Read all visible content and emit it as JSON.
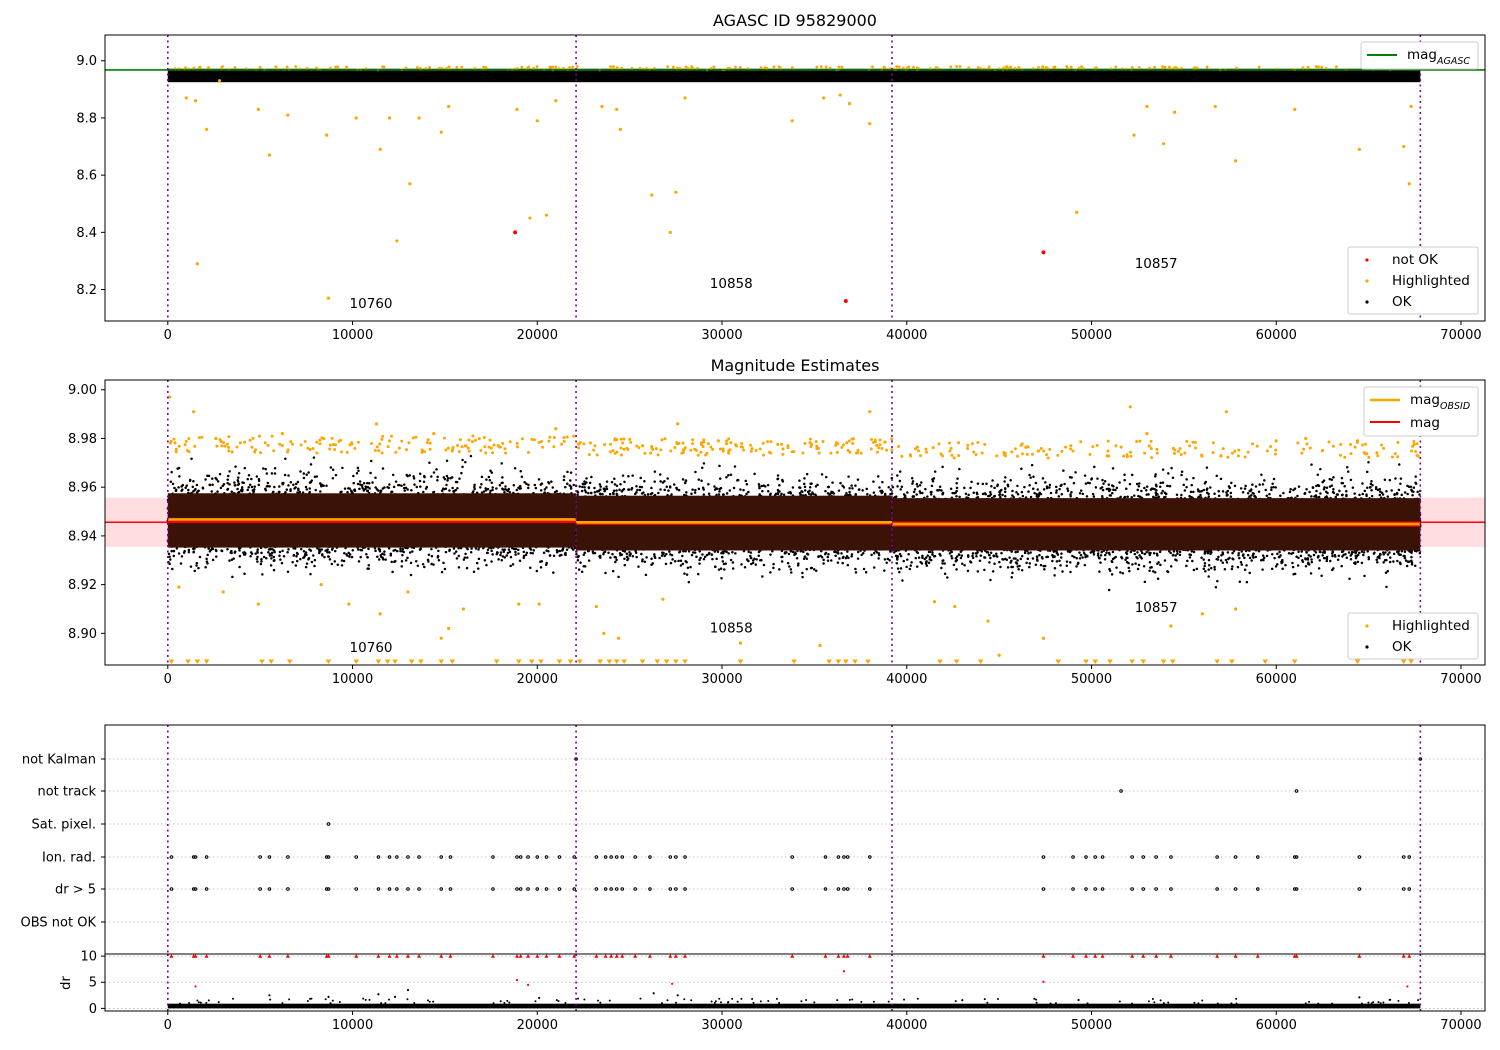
{
  "colors": {
    "ok": "#000000",
    "highlighted": "#ffa500",
    "not_ok": "#ff0000",
    "mag_agasc_line": "#008000",
    "mag_obsid_line": "#ffa500",
    "mag_line": "#ff0000",
    "obs_boundary": "#7f00a0",
    "band_fill": "#ffdde0",
    "band_dark": "#3a1206"
  },
  "chart_data": [
    {
      "panel": "agasc",
      "type": "scatter",
      "title": "AGASC ID 95829000",
      "xlabel": "",
      "ylabel": "",
      "xlim": [
        -3400,
        71300
      ],
      "ylim": [
        8.09,
        9.09
      ],
      "x_ticks": [
        0,
        10000,
        20000,
        30000,
        40000,
        50000,
        60000,
        70000
      ],
      "x_tick_labels": [
        "0",
        "10000",
        "20000",
        "30000",
        "40000",
        "50000",
        "60000",
        "70000"
      ],
      "y_ticks": [
        8.2,
        8.4,
        8.6,
        8.8,
        9.0
      ],
      "y_tick_labels": [
        "8.2",
        "8.4",
        "8.6",
        "8.8",
        "9.0"
      ],
      "ok_band": {
        "x_range": [
          0,
          67800
        ],
        "y_range": [
          8.925,
          8.972
        ]
      },
      "reference_line": {
        "name": "mag",
        "sub": "AGASC",
        "y": 8.968
      },
      "highlighted_points": [
        {
          "x": 1000,
          "y": 8.87
        },
        {
          "x": 1500,
          "y": 8.86
        },
        {
          "x": 1600,
          "y": 8.29
        },
        {
          "x": 2100,
          "y": 8.76
        },
        {
          "x": 2800,
          "y": 8.93
        },
        {
          "x": 4900,
          "y": 8.83
        },
        {
          "x": 5500,
          "y": 8.67
        },
        {
          "x": 6500,
          "y": 8.81
        },
        {
          "x": 8600,
          "y": 8.74
        },
        {
          "x": 8700,
          "y": 8.17
        },
        {
          "x": 10200,
          "y": 8.8
        },
        {
          "x": 11500,
          "y": 8.69
        },
        {
          "x": 12000,
          "y": 8.8
        },
        {
          "x": 12400,
          "y": 8.37
        },
        {
          "x": 13100,
          "y": 8.57
        },
        {
          "x": 13600,
          "y": 8.8
        },
        {
          "x": 14800,
          "y": 8.75
        },
        {
          "x": 15200,
          "y": 8.84
        },
        {
          "x": 18900,
          "y": 8.83
        },
        {
          "x": 19600,
          "y": 8.45
        },
        {
          "x": 20000,
          "y": 8.79
        },
        {
          "x": 20500,
          "y": 8.46
        },
        {
          "x": 21000,
          "y": 8.86
        },
        {
          "x": 23500,
          "y": 8.84
        },
        {
          "x": 24300,
          "y": 8.83
        },
        {
          "x": 24500,
          "y": 8.76
        },
        {
          "x": 26200,
          "y": 8.53
        },
        {
          "x": 27200,
          "y": 8.4
        },
        {
          "x": 27500,
          "y": 8.54
        },
        {
          "x": 28000,
          "y": 8.87
        },
        {
          "x": 33800,
          "y": 8.79
        },
        {
          "x": 35500,
          "y": 8.87
        },
        {
          "x": 36400,
          "y": 8.88
        },
        {
          "x": 36900,
          "y": 8.85
        },
        {
          "x": 38000,
          "y": 8.78
        },
        {
          "x": 49200,
          "y": 8.47
        },
        {
          "x": 52300,
          "y": 8.74
        },
        {
          "x": 53000,
          "y": 8.84
        },
        {
          "x": 53900,
          "y": 8.71
        },
        {
          "x": 54500,
          "y": 8.82
        },
        {
          "x": 56700,
          "y": 8.84
        },
        {
          "x": 57800,
          "y": 8.65
        },
        {
          "x": 61000,
          "y": 8.83
        },
        {
          "x": 64500,
          "y": 8.69
        },
        {
          "x": 66900,
          "y": 8.7
        },
        {
          "x": 67200,
          "y": 8.57
        },
        {
          "x": 67300,
          "y": 8.84
        }
      ],
      "not_ok_points": [
        {
          "x": 18800,
          "y": 8.4
        },
        {
          "x": 36700,
          "y": 8.16
        },
        {
          "x": 47400,
          "y": 8.33
        }
      ],
      "obs_boundaries": [
        0,
        22100,
        39200,
        67800
      ],
      "obsid_labels": [
        {
          "text": "10760",
          "x": 11000,
          "y": 8.135
        },
        {
          "text": "10858",
          "x": 30500,
          "y": 8.205
        },
        {
          "text": "10857",
          "x": 53500,
          "y": 8.275
        }
      ],
      "legend_upper": {
        "placement": "top-right",
        "entries": [
          {
            "label": "mag",
            "sub": "AGASC",
            "kind": "line",
            "color_key": "mag_agasc_line"
          }
        ]
      },
      "legend_lower": {
        "placement": "bottom-right",
        "entries": [
          {
            "label": "not OK",
            "kind": "marker",
            "color_key": "not_ok"
          },
          {
            "label": "Highlighted",
            "kind": "marker",
            "color_key": "highlighted"
          },
          {
            "label": "OK",
            "kind": "marker",
            "color_key": "ok"
          }
        ]
      }
    },
    {
      "panel": "estimates",
      "type": "scatter",
      "title": "Magnitude Estimates",
      "xlabel": "",
      "ylabel": "",
      "xlim": [
        -3400,
        71300
      ],
      "ylim": [
        8.887,
        9.004
      ],
      "x_ticks": [
        0,
        10000,
        20000,
        30000,
        40000,
        50000,
        60000,
        70000
      ],
      "x_tick_labels": [
        "0",
        "10000",
        "20000",
        "30000",
        "40000",
        "50000",
        "60000",
        "70000"
      ],
      "y_ticks": [
        8.9,
        8.92,
        8.94,
        8.96,
        8.98,
        9.0
      ],
      "y_tick_labels": [
        "8.90",
        "8.92",
        "8.94",
        "8.96",
        "8.98",
        "9.00"
      ],
      "mag_line": {
        "name": "mag",
        "y": 8.9456,
        "band": [
          8.9355,
          8.9557
        ],
        "x_range": [
          -3400,
          71300
        ]
      },
      "segments": [
        {
          "x_range": [
            0,
            22100
          ],
          "mag_obsid": 8.9467,
          "core": [
            8.9352,
            8.9575
          ],
          "spread": [
            8.918,
            8.974
          ]
        },
        {
          "x_range": [
            22100,
            39200
          ],
          "mag_obsid": 8.9455,
          "core": [
            8.934,
            8.9565
          ],
          "spread": [
            8.916,
            8.973
          ]
        },
        {
          "x_range": [
            39200,
            67800
          ],
          "mag_obsid": 8.9448,
          "core": [
            8.934,
            8.9555
          ],
          "spread": [
            8.915,
            8.972
          ]
        }
      ],
      "highlighted_points": [
        {
          "x": 100,
          "y": 8.997
        },
        {
          "x": 600,
          "y": 8.919
        },
        {
          "x": 1400,
          "y": 8.991
        },
        {
          "x": 2600,
          "y": 8.98
        },
        {
          "x": 3000,
          "y": 8.917
        },
        {
          "x": 4900,
          "y": 8.912
        },
        {
          "x": 6200,
          "y": 8.982
        },
        {
          "x": 8300,
          "y": 8.92
        },
        {
          "x": 9800,
          "y": 8.912
        },
        {
          "x": 11300,
          "y": 8.986
        },
        {
          "x": 11500,
          "y": 8.908
        },
        {
          "x": 13000,
          "y": 8.917
        },
        {
          "x": 14400,
          "y": 8.982
        },
        {
          "x": 14800,
          "y": 8.898
        },
        {
          "x": 15200,
          "y": 8.902
        },
        {
          "x": 16000,
          "y": 8.91
        },
        {
          "x": 19000,
          "y": 8.912
        },
        {
          "x": 20100,
          "y": 8.912
        },
        {
          "x": 21000,
          "y": 8.984
        },
        {
          "x": 23200,
          "y": 8.911
        },
        {
          "x": 23600,
          "y": 8.9
        },
        {
          "x": 24400,
          "y": 8.898
        },
        {
          "x": 25700,
          "y": 8.977
        },
        {
          "x": 26800,
          "y": 8.914
        },
        {
          "x": 27600,
          "y": 8.986
        },
        {
          "x": 29800,
          "y": 8.979
        },
        {
          "x": 31000,
          "y": 8.896
        },
        {
          "x": 35300,
          "y": 8.895
        },
        {
          "x": 38000,
          "y": 8.991
        },
        {
          "x": 41500,
          "y": 8.913
        },
        {
          "x": 42600,
          "y": 8.911
        },
        {
          "x": 44400,
          "y": 8.905
        },
        {
          "x": 45000,
          "y": 8.891
        },
        {
          "x": 47400,
          "y": 8.898
        },
        {
          "x": 52100,
          "y": 8.993
        },
        {
          "x": 53000,
          "y": 8.982
        },
        {
          "x": 54300,
          "y": 8.903
        },
        {
          "x": 56000,
          "y": 8.908
        },
        {
          "x": 57300,
          "y": 8.991
        },
        {
          "x": 57800,
          "y": 8.91
        },
        {
          "x": 60000,
          "y": 8.979
        },
        {
          "x": 61600,
          "y": 8.98
        },
        {
          "x": 62500,
          "y": 8.975
        },
        {
          "x": 64400,
          "y": 8.979
        },
        {
          "x": 65700,
          "y": 8.99
        },
        {
          "x": 67700,
          "y": 8.902
        }
      ],
      "low_clipped_x": [
        200,
        1100,
        1600,
        2100,
        5100,
        5600,
        6600,
        8700,
        10200,
        11400,
        11900,
        12300,
        13200,
        13700,
        14800,
        15400,
        17800,
        19000,
        19700,
        20200,
        21200,
        21800,
        22300,
        23400,
        23900,
        24300,
        24700,
        25700,
        26500,
        27000,
        27500,
        28000,
        31000,
        33900,
        35800,
        36300,
        36700,
        37200,
        37900,
        41800,
        42700,
        44000,
        48200,
        49700,
        50200,
        51000,
        52200,
        52800,
        53900,
        54400,
        56800,
        57600,
        59400,
        61000,
        64400,
        66900,
        67300
      ],
      "obs_boundaries": [
        0,
        22100,
        39200,
        67800
      ],
      "obsid_labels": [
        {
          "text": "10760",
          "x": 11000,
          "y": 8.8923
        },
        {
          "text": "10858",
          "x": 30500,
          "y": 8.9004
        },
        {
          "text": "10857",
          "x": 53500,
          "y": 8.9087
        }
      ],
      "legend_upper": {
        "placement": "top-right",
        "entries": [
          {
            "label": "mag",
            "sub": "OBSID",
            "kind": "line",
            "color_key": "mag_obsid_line"
          },
          {
            "label": "mag",
            "kind": "line",
            "color_key": "mag_line"
          }
        ]
      },
      "legend_lower": {
        "placement": "bottom-right",
        "entries": [
          {
            "label": "Highlighted",
            "kind": "marker",
            "color_key": "highlighted"
          },
          {
            "label": "OK",
            "kind": "marker",
            "color_key": "ok"
          }
        ]
      }
    },
    {
      "panel": "flags",
      "type": "scatter",
      "title": "",
      "xlim": [
        -3400,
        71300
      ],
      "categories": [
        "not Kalman",
        "not track",
        "Sat. pixel.",
        "Ion. rad.",
        "dr > 5",
        "OBS not OK"
      ],
      "flag_points": {
        "not Kalman": [
          22100,
          67800
        ],
        "not track": [
          51600,
          61100
        ],
        "Sat. pixel.": [
          8700
        ],
        "Ion. rad.": [
          200,
          1400,
          1500,
          2100,
          5000,
          5500,
          6500,
          8600,
          8700,
          10200,
          11400,
          12000,
          12400,
          13000,
          13600,
          14800,
          15300,
          17600,
          18900,
          19100,
          19500,
          20000,
          20500,
          21200,
          22000,
          23200,
          23700,
          24000,
          24300,
          24600,
          25300,
          26100,
          27200,
          27500,
          28000,
          33800,
          35600,
          36300,
          36600,
          36800,
          38000,
          47400,
          49000,
          49700,
          50200,
          50600,
          52200,
          52800,
          53500,
          54300,
          56800,
          57800,
          59000,
          61000,
          61100,
          64500,
          66900,
          67200
        ],
        "dr > 5": [
          200,
          1400,
          1500,
          2100,
          5000,
          5500,
          6500,
          8600,
          8700,
          10200,
          11400,
          12000,
          12400,
          13000,
          13600,
          14800,
          15300,
          17600,
          18900,
          19100,
          19500,
          20000,
          20500,
          21200,
          22000,
          23200,
          23700,
          24000,
          24300,
          24600,
          25300,
          26100,
          27200,
          27500,
          28000,
          33800,
          35600,
          36300,
          36600,
          36800,
          38000,
          47400,
          49000,
          49700,
          50200,
          50600,
          52200,
          52800,
          53500,
          54300,
          56800,
          57800,
          59000,
          61000,
          61100,
          64500,
          66900,
          67200
        ],
        "OBS not OK": []
      },
      "obs_boundaries": [
        0,
        22100,
        39200,
        67800
      ]
    },
    {
      "panel": "dr",
      "type": "scatter",
      "title": "",
      "xlabel": "",
      "ylabel": "dr",
      "xlim": [
        -3400,
        71300
      ],
      "ylim": [
        -0.5,
        10.4
      ],
      "x_ticks": [
        0,
        10000,
        20000,
        30000,
        40000,
        50000,
        60000,
        70000
      ],
      "x_tick_labels": [
        "0",
        "10000",
        "20000",
        "30000",
        "40000",
        "50000",
        "60000",
        "70000"
      ],
      "y_ticks": [
        0,
        5,
        10
      ],
      "y_tick_labels": [
        "0",
        "5",
        "10"
      ],
      "baseline_band": {
        "x_range": [
          0,
          67800
        ],
        "y_range": [
          0,
          0.9
        ]
      },
      "scatter_points": [
        {
          "x": 1500,
          "y": 4.2
        },
        {
          "x": 5500,
          "y": 2.5
        },
        {
          "x": 8700,
          "y": 2.2
        },
        {
          "x": 11400,
          "y": 2.7
        },
        {
          "x": 12300,
          "y": 2.2
        },
        {
          "x": 13000,
          "y": 3.5
        },
        {
          "x": 18900,
          "y": 5.4
        },
        {
          "x": 19500,
          "y": 4.5
        },
        {
          "x": 20100,
          "y": 2.0
        },
        {
          "x": 26300,
          "y": 2.9
        },
        {
          "x": 27300,
          "y": 4.7
        },
        {
          "x": 27600,
          "y": 2.5
        },
        {
          "x": 36600,
          "y": 7.1
        },
        {
          "x": 47400,
          "y": 5.1
        },
        {
          "x": 49300,
          "y": 1.6
        },
        {
          "x": 64500,
          "y": 2.1
        },
        {
          "x": 67100,
          "y": 4.2
        }
      ],
      "red_markers_x": [
        200,
        1400,
        1500,
        2100,
        5000,
        5500,
        6500,
        8600,
        8700,
        10200,
        11400,
        12000,
        12400,
        13000,
        13600,
        14800,
        15300,
        17600,
        18900,
        19100,
        19500,
        20000,
        20500,
        21200,
        22000,
        23200,
        23700,
        24000,
        24300,
        24600,
        25300,
        26100,
        27200,
        27500,
        28000,
        33800,
        35600,
        36300,
        36600,
        36800,
        38000,
        47400,
        49000,
        49700,
        50200,
        50600,
        52200,
        52800,
        53500,
        54300,
        56800,
        57800,
        59000,
        61000,
        61100,
        64500,
        66900,
        67200
      ],
      "red_marker_y": 10,
      "obs_boundaries": [
        0,
        22100,
        39200,
        67800
      ]
    }
  ]
}
